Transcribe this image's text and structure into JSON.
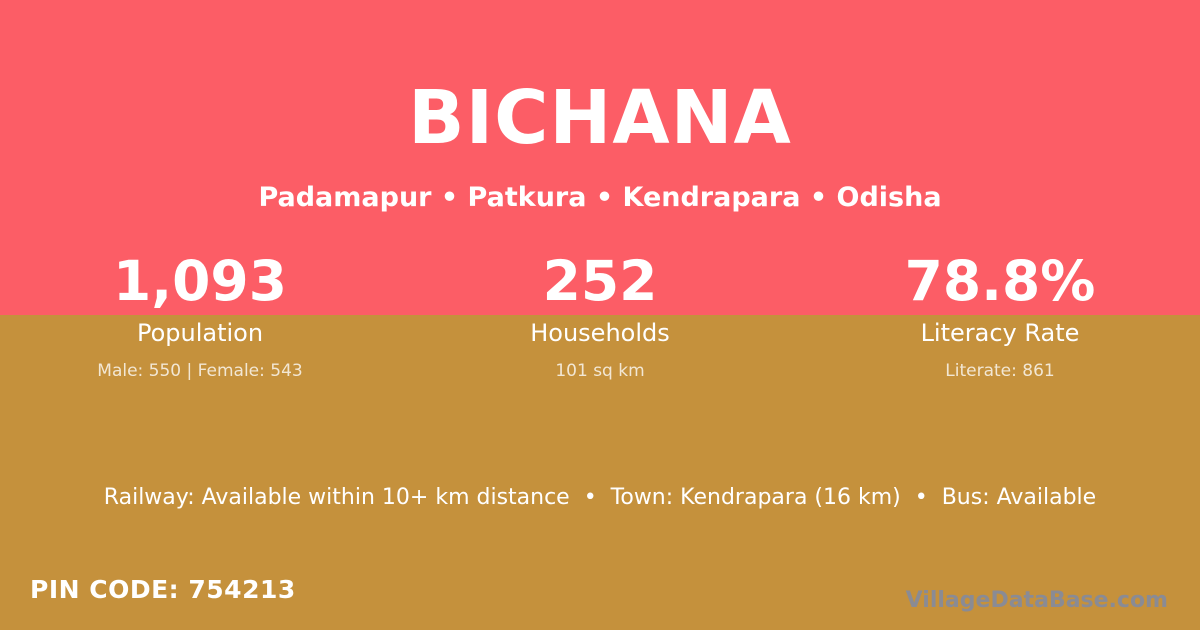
{
  "theme": {
    "pink": "#FC5D66",
    "gold": "#C5913C",
    "white": "#FFFFFF",
    "watermark": "#8A8B94"
  },
  "header": {
    "title": "BICHANA",
    "breadcrumb": "Padamapur • Patkura • Kendrapara • Odisha"
  },
  "stats": [
    {
      "value": "1,093",
      "label": "Population",
      "detail": "Male: 550 | Female: 543"
    },
    {
      "value": "252",
      "label": "Households",
      "detail": "101 sq km"
    },
    {
      "value": "78.8%",
      "label": "Literacy Rate",
      "detail": "Literate: 861"
    }
  ],
  "transport": {
    "text": "Railway: Available within 10+ km distance  •  Town: Kendrapara (16 km)  •  Bus: Available"
  },
  "footer": {
    "pin_code": "PIN CODE: 754213",
    "watermark": "VillageDataBase.com"
  }
}
